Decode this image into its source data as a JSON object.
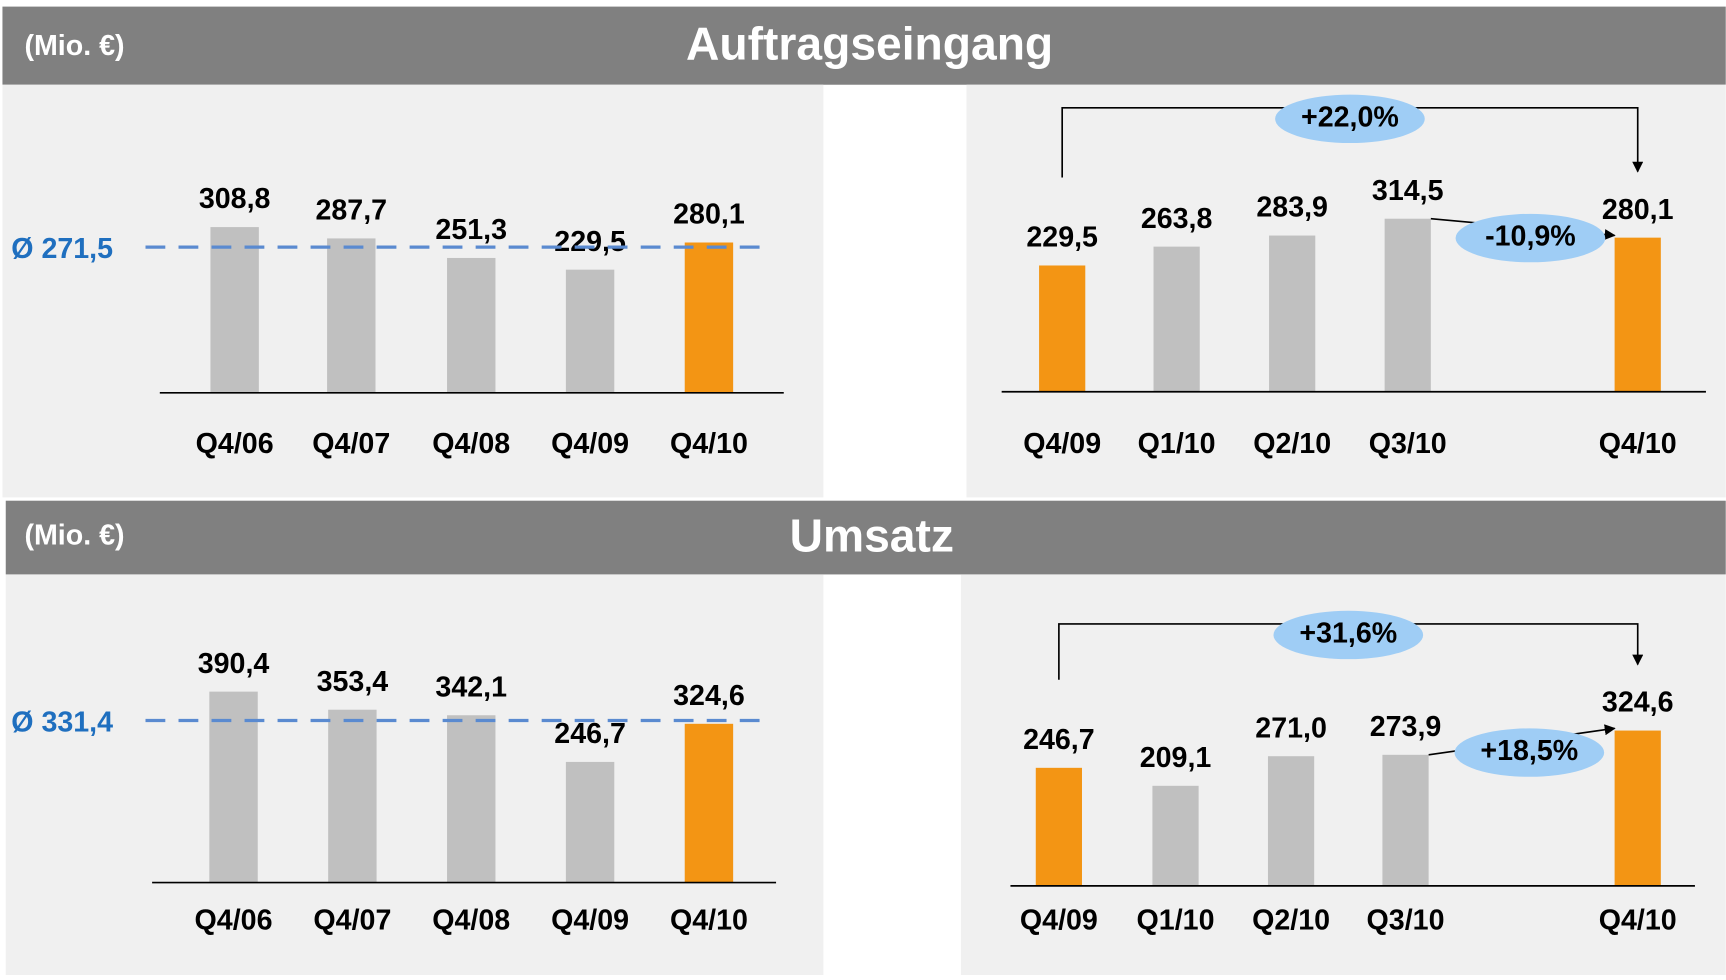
{
  "sections": [
    {
      "unit": "(Mio. €)",
      "title": "Auftragseingang"
    },
    {
      "unit": "(Mio. €)",
      "title": "Umsatz"
    }
  ],
  "chart_data": [
    {
      "type": "bar",
      "categories": [
        "Q4/06",
        "Q4/07",
        "Q4/08",
        "Q4/09",
        "Q4/10"
      ],
      "values": [
        308.8,
        287.7,
        251.3,
        229.5,
        280.1
      ],
      "value_labels": [
        "308,8",
        "287,7",
        "251,3",
        "229,5",
        "280,1"
      ],
      "colors": [
        "#c0c0c0",
        "#c0c0c0",
        "#c0c0c0",
        "#c0c0c0",
        "#f39514"
      ],
      "ylim": [
        0,
        410
      ],
      "average": {
        "value": 271.5,
        "label": "Ø 271,5"
      },
      "average_color": "#5a8ad0"
    },
    {
      "type": "bar",
      "categories": [
        "Q4/09",
        "Q1/10",
        "Q2/10",
        "Q3/10",
        "Q4/10"
      ],
      "values": [
        229.5,
        263.8,
        283.9,
        314.5,
        280.1
      ],
      "value_labels": [
        "229,5",
        "263,8",
        "283,9",
        "314,5",
        "280,1"
      ],
      "colors": [
        "#f39514",
        "#c0c0c0",
        "#c0c0c0",
        "#c0c0c0",
        "#f39514"
      ],
      "ylim": [
        0,
        400
      ],
      "annotations": [
        "+22,0%",
        "-10,9%"
      ]
    },
    {
      "type": "bar",
      "categories": [
        "Q4/06",
        "Q4/07",
        "Q4/08",
        "Q4/09",
        "Q4/10"
      ],
      "values": [
        390.4,
        353.4,
        342.1,
        246.7,
        324.6
      ],
      "value_labels": [
        "390,4",
        "353,4",
        "342,1",
        "246,7",
        "324,6"
      ],
      "colors": [
        "#c0c0c0",
        "#c0c0c0",
        "#c0c0c0",
        "#c0c0c0",
        "#f39514"
      ],
      "ylim": [
        0,
        450
      ],
      "average": {
        "value": 331.4,
        "label": "Ø 331,4"
      },
      "average_color": "#5a8ad0"
    },
    {
      "type": "bar",
      "categories": [
        "Q4/09",
        "Q1/10",
        "Q2/10",
        "Q3/10",
        "Q4/10"
      ],
      "values": [
        246.7,
        209.1,
        271.0,
        273.9,
        324.6
      ],
      "value_labels": [
        "246,7",
        "209,1",
        "271,0",
        "273,9",
        "324,6"
      ],
      "colors": [
        "#f39514",
        "#c0c0c0",
        "#c0c0c0",
        "#c0c0c0",
        "#f39514"
      ],
      "ylim": [
        0,
        460
      ],
      "annotations": [
        "+31,6%",
        "+18,5%"
      ]
    }
  ]
}
